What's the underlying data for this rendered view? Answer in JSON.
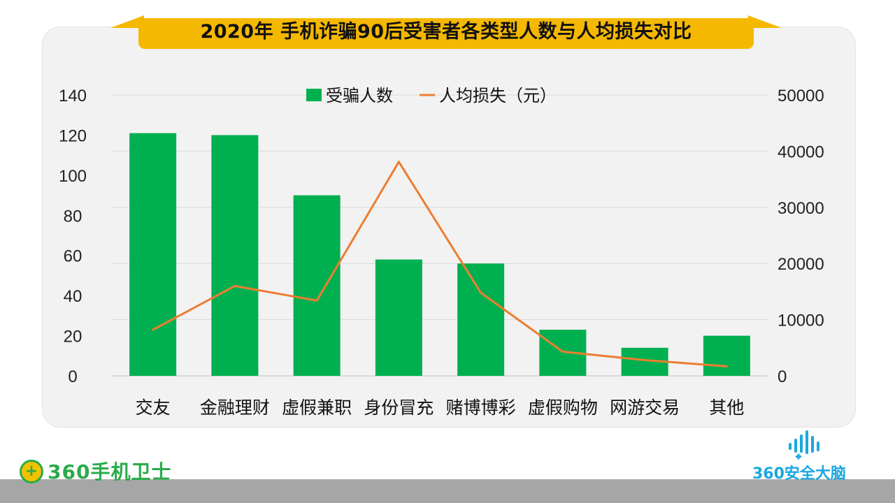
{
  "chart_data": {
    "type": "bar",
    "title": "2020年 手机诈骗90后受害者各类型人数与人均损失对比",
    "categories": [
      "交友",
      "金融理财",
      "虚假兼职",
      "身份冒充",
      "赌博博彩",
      "虚假购物",
      "网游交易",
      "其他"
    ],
    "series": [
      {
        "name": "受骗人数",
        "type": "bar",
        "axis": "left",
        "color": "#00b050",
        "values": [
          121,
          120,
          90,
          58,
          56,
          23,
          14,
          20
        ]
      },
      {
        "name": "人均损失（元）",
        "type": "line",
        "axis": "right",
        "color": "#ed7d31",
        "values": [
          8200,
          16000,
          13400,
          38100,
          14800,
          4300,
          2800,
          1700
        ]
      }
    ],
    "y_left": {
      "min": 0,
      "max": 140,
      "ticks": [
        0,
        20,
        40,
        60,
        80,
        100,
        120,
        140
      ]
    },
    "y_right": {
      "min": 0,
      "max": 50000,
      "ticks": [
        0,
        10000,
        20000,
        30000,
        40000,
        50000
      ]
    },
    "legend_position": "top-center",
    "grid": true
  },
  "logos": {
    "left_mark": "+",
    "left_text": "360手机卫士",
    "right_icon": "sound-wave-icon",
    "right_text": "360安全大脑"
  },
  "colors": {
    "banner": "#f5b800",
    "bar": "#00b050",
    "line": "#ed7d31",
    "brand_green": "#2bab4a",
    "brand_blue": "#1ba7e0"
  }
}
